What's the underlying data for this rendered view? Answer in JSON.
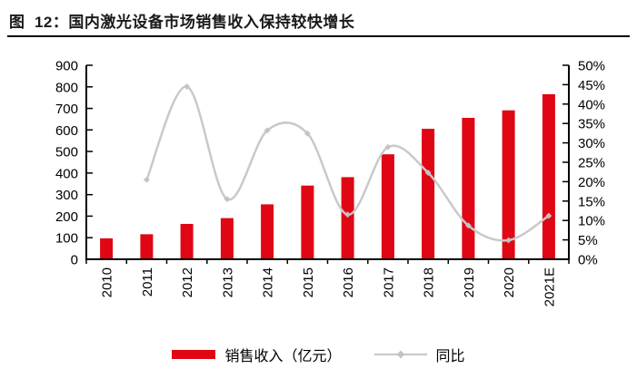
{
  "figure": {
    "label": "图  12：",
    "title": "国内激光设备市场销售收入保持较快增长"
  },
  "colors": {
    "bar": "#e00613",
    "line": "#c9c9c9",
    "marker": "#c3c3c3",
    "axis": "#000000",
    "title_text": "#1a1a1a"
  },
  "chart_data": {
    "type": "combo-bar-line",
    "title": "国内激光设备市场销售收入保持较快增长",
    "categories": [
      "2010",
      "2011",
      "2012",
      "2013",
      "2014",
      "2015",
      "2016",
      "2017",
      "2018",
      "2019",
      "2020",
      "2021E"
    ],
    "series": [
      {
        "name": "销售收入（亿元）",
        "type": "bar",
        "axis": "left",
        "values": [
          97,
          116,
          164,
          191,
          255,
          342,
          381,
          487,
          605,
          656,
          691,
          766
        ]
      },
      {
        "name": "同比",
        "type": "line",
        "axis": "right",
        "values": [
          null,
          20.5,
          44.5,
          15.5,
          33.2,
          32.4,
          11.5,
          28.9,
          22.3,
          8.7,
          4.9,
          11.2
        ]
      }
    ],
    "left_axis": {
      "min": 0,
      "max": 900,
      "step": 100,
      "tick_labels": [
        "900",
        "800",
        "700",
        "600",
        "500",
        "400",
        "300",
        "200",
        "100",
        "0"
      ]
    },
    "right_axis": {
      "min": 0,
      "max": 50,
      "step": 5,
      "tick_labels": [
        "50%",
        "45%",
        "40%",
        "35%",
        "30%",
        "25%",
        "20%",
        "15%",
        "10%",
        "5%",
        "0%"
      ]
    },
    "grid": false,
    "legend_position": "bottom",
    "legend": [
      {
        "label": "销售收入（亿元）",
        "swatch": "bar"
      },
      {
        "label": "同比",
        "swatch": "line"
      }
    ]
  }
}
